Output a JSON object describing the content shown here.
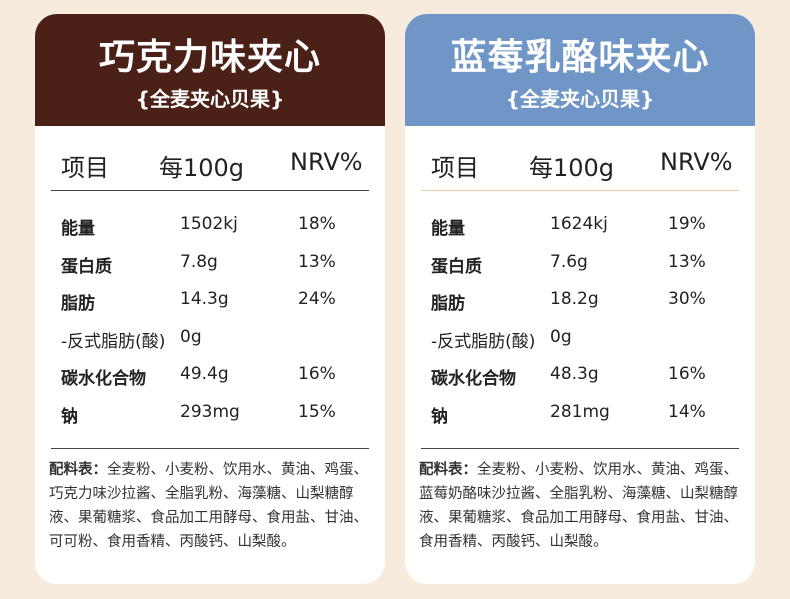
{
  "cards": [
    {
      "title": "巧克力味夹心",
      "subtitle": "{全麦夹心贝果}",
      "header_color": "#4b2117",
      "cols": [
        "项目",
        "每100g",
        "NRV%"
      ],
      "rows": [
        {
          "name": "能量",
          "value": "1502kj",
          "nrv": "18%"
        },
        {
          "name": "蛋白质",
          "value": "7.8g",
          "nrv": "13%"
        },
        {
          "name": "脂肪",
          "value": "14.3g",
          "nrv": "24%"
        },
        {
          "name": "-反式脂肪(酸)",
          "value": "0g",
          "nrv": ""
        },
        {
          "name": "碳水化合物",
          "value": "49.4g",
          "nrv": "16%"
        },
        {
          "name": "钠",
          "value": "293mg",
          "nrv": "15%"
        }
      ],
      "ingredients_label": "配料表：",
      "ingredients": "全麦粉、小麦粉、饮用水、黄油、鸡蛋、巧克力味沙拉酱、全脂乳粉、海藻糖、山梨糖醇液、果葡糖浆、食品加工用酵母、食用盐、甘油、可可粉、食用香精、丙酸钙、山梨酸。"
    },
    {
      "title": "蓝莓乳酪味夹心",
      "subtitle": "{全麦夹心贝果}",
      "header_color": "#6f96c6",
      "cols": [
        "项目",
        "每100g",
        "NRV%"
      ],
      "rows": [
        {
          "name": "能量",
          "value": "1624kj",
          "nrv": "19%"
        },
        {
          "name": "蛋白质",
          "value": "7.6g",
          "nrv": "13%"
        },
        {
          "name": "脂肪",
          "value": "18.2g",
          "nrv": "30%"
        },
        {
          "name": "-反式脂肪(酸)",
          "value": "0g",
          "nrv": ""
        },
        {
          "name": "碳水化合物",
          "value": "48.3g",
          "nrv": "16%"
        },
        {
          "name": "钠",
          "value": "281mg",
          "nrv": "14%"
        }
      ],
      "ingredients_label": "配料表：",
      "ingredients": "全麦粉、小麦粉、饮用水、黄油、鸡蛋、蓝莓奶酪味沙拉酱、全脂乳粉、海藻糖、山梨糖醇液、果葡糖浆、食品加工用酵母、食用盐、甘油、食用香精、丙酸钙、山梨酸。"
    }
  ]
}
